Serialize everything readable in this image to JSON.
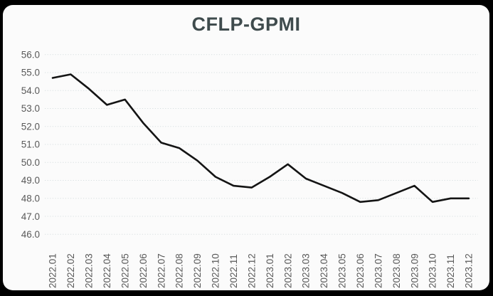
{
  "window": {
    "background_color": "#000000",
    "card_background_color": "#fbfbfb"
  },
  "chart_data": {
    "type": "line",
    "title": "CFLP-GPMI",
    "x": [
      "2022.01",
      "2022.02",
      "2022.03",
      "2022.04",
      "2022.05",
      "2022.06",
      "2022.07",
      "2022.08",
      "2022.09",
      "2022.10",
      "2022.11",
      "2022.12",
      "2023.01",
      "2023.02",
      "2023.03",
      "2023.04",
      "2023.05",
      "2023.06",
      "2023.07",
      "2023.08",
      "2023.09",
      "2023.10",
      "2023.11",
      "2023.12"
    ],
    "values": [
      54.7,
      54.9,
      54.1,
      53.2,
      53.5,
      52.2,
      51.1,
      50.8,
      50.1,
      49.2,
      48.7,
      48.6,
      49.2,
      49.9,
      49.1,
      48.7,
      48.3,
      47.8,
      47.9,
      48.3,
      48.7,
      47.8,
      48.0,
      48.0
    ],
    "ylim": [
      46.0,
      56.0
    ],
    "ytick_step": 1.0,
    "ytick_labels": [
      "56.0",
      "55.0",
      "54.0",
      "53.0",
      "52.0",
      "51.0",
      "50.0",
      "49.0",
      "48.0",
      "47.0",
      "46.0"
    ],
    "xlabel": "",
    "ylabel": "",
    "legend": "none",
    "grid": "horizontal dotted",
    "line_color": "#141414",
    "grid_color": "#d7dfe0",
    "tick_label_color": "#595959",
    "title_color": "#3f4b4d"
  }
}
